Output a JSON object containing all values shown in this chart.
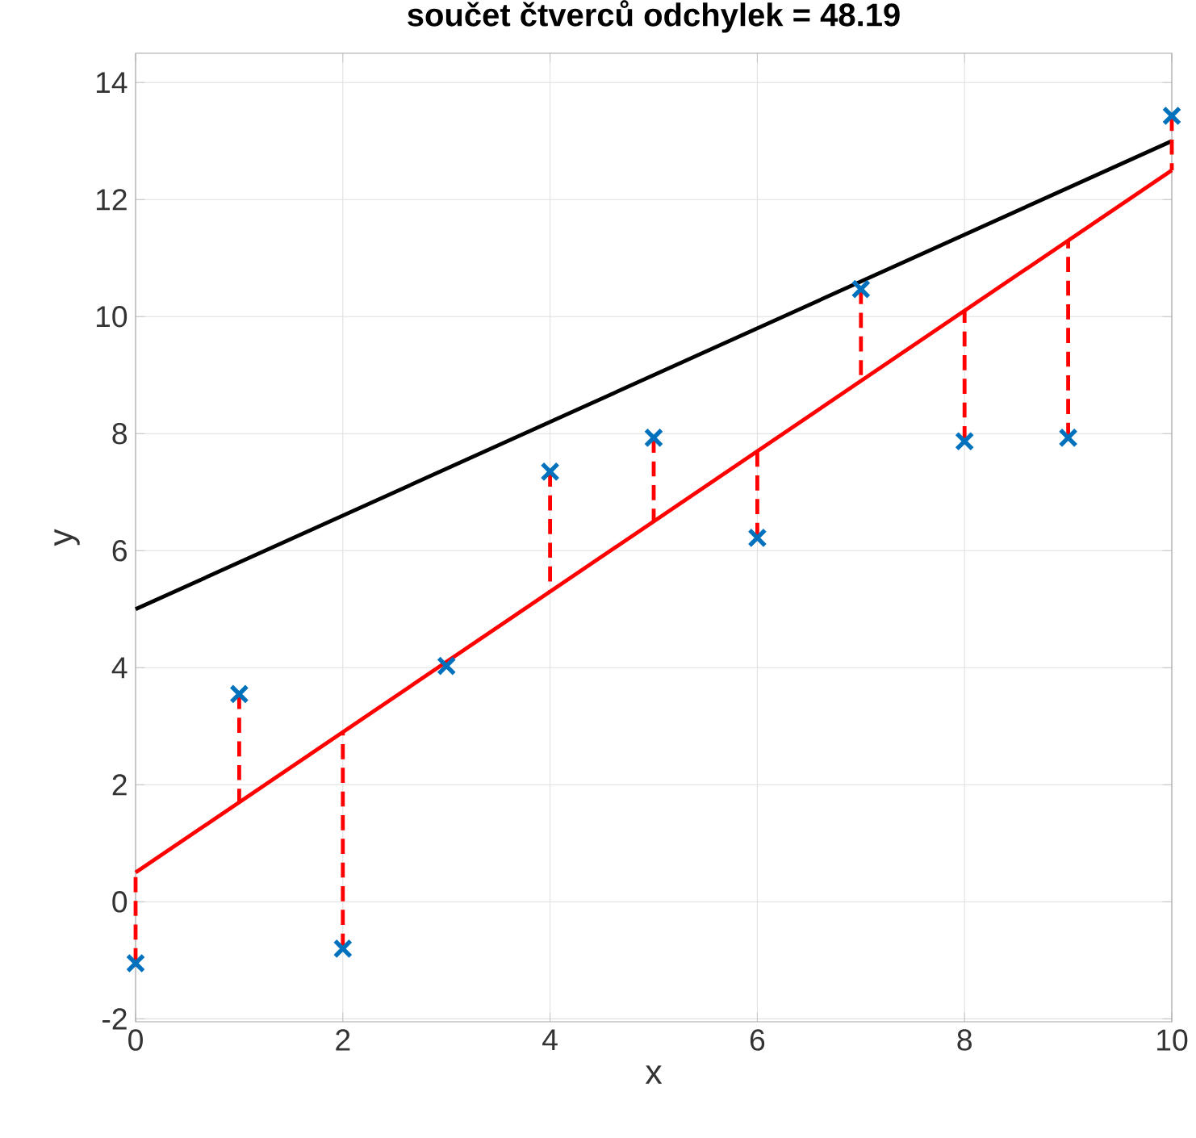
{
  "chart_data": {
    "type": "scatter",
    "title": "**součet čtverců odchylek = 48.19**",
    "xlabel": "x",
    "ylabel": "y",
    "xlim": [
      0,
      10
    ],
    "ylim": [
      -2.05,
      14.5
    ],
    "xticks": [
      0,
      2,
      4,
      6,
      8,
      10
    ],
    "yticks": [
      -2,
      0,
      2,
      4,
      6,
      8,
      10,
      12,
      14
    ],
    "grid": true,
    "series": [
      {
        "type": "line",
        "color": "#000000",
        "line_style": "solid",
        "x": [
          0,
          10
        ],
        "values": [
          5,
          13
        ]
      },
      {
        "type": "line",
        "color": "#ff0000",
        "line_style": "solid",
        "x": [
          0,
          10
        ],
        "values": [
          0.5,
          12.5
        ]
      },
      {
        "type": "line",
        "color": "#ff0000",
        "line_style": "dashed",
        "x": [
          0,
          0
        ],
        "values": [
          -1.05,
          0.5
        ]
      },
      {
        "type": "line",
        "color": "#ff0000",
        "line_style": "dashed",
        "x": [
          1,
          1
        ],
        "values": [
          3.55,
          1.7
        ]
      },
      {
        "type": "line",
        "color": "#ff0000",
        "line_style": "dashed",
        "x": [
          2,
          2
        ],
        "values": [
          -0.8,
          2.9
        ]
      },
      {
        "type": "line",
        "color": "#ff0000",
        "line_style": "dashed",
        "x": [
          4,
          4
        ],
        "values": [
          7.35,
          5.3
        ]
      },
      {
        "type": "line",
        "color": "#ff0000",
        "line_style": "dashed",
        "x": [
          5,
          5
        ],
        "values": [
          7.93,
          6.5
        ]
      },
      {
        "type": "line",
        "color": "#ff0000",
        "line_style": "dashed",
        "x": [
          6,
          6
        ],
        "values": [
          6.22,
          7.7
        ]
      },
      {
        "type": "line",
        "color": "#ff0000",
        "line_style": "dashed",
        "x": [
          7,
          7
        ],
        "values": [
          10.47,
          8.9
        ]
      },
      {
        "type": "line",
        "color": "#ff0000",
        "line_style": "dashed",
        "x": [
          8,
          8
        ],
        "values": [
          7.87,
          10.1
        ]
      },
      {
        "type": "line",
        "color": "#ff0000",
        "line_style": "dashed",
        "x": [
          9,
          9
        ],
        "values": [
          7.93,
          11.3
        ]
      },
      {
        "type": "line",
        "color": "#ff0000",
        "line_style": "dashed",
        "x": [
          10,
          10
        ],
        "values": [
          13.43,
          12.5
        ]
      },
      {
        "color": "#0072bd",
        "marker": "cross",
        "x": [
          0,
          1,
          2,
          3,
          4,
          5,
          6,
          7,
          8,
          9,
          10
        ],
        "values": [
          -1.05,
          3.55,
          -0.8,
          4.03,
          7.35,
          7.93,
          6.22,
          10.47,
          7.87,
          7.93,
          13.43
        ]
      }
    ]
  }
}
